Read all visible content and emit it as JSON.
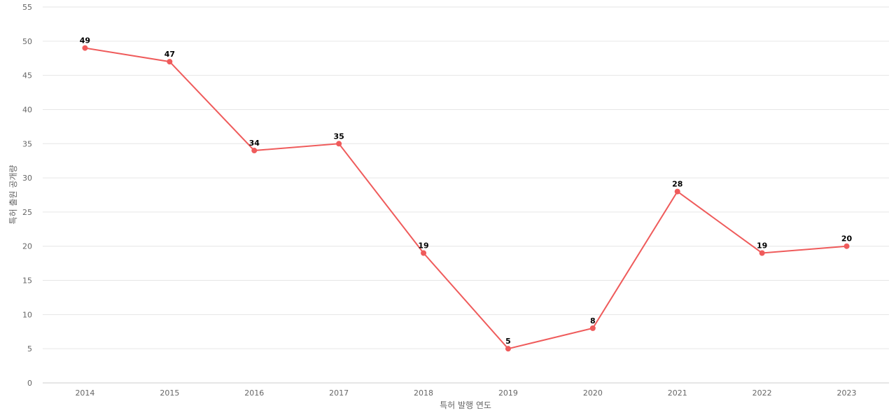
{
  "chart_data": {
    "type": "line",
    "title": "",
    "xlabel": "특허 발행 연도",
    "ylabel": "특허 출원 공개량",
    "ylim": [
      0,
      55
    ],
    "y_ticks": [
      0,
      5,
      10,
      15,
      20,
      25,
      30,
      35,
      40,
      45,
      50,
      55
    ],
    "categories": [
      "2014",
      "2015",
      "2016",
      "2017",
      "2018",
      "2019",
      "2020",
      "2021",
      "2022",
      "2023"
    ],
    "series": [
      {
        "values": [
          49,
          47,
          34,
          35,
          19,
          5,
          8,
          28,
          19,
          20
        ],
        "color": "#ef5b5b"
      }
    ],
    "grid": true,
    "legend": "none"
  }
}
